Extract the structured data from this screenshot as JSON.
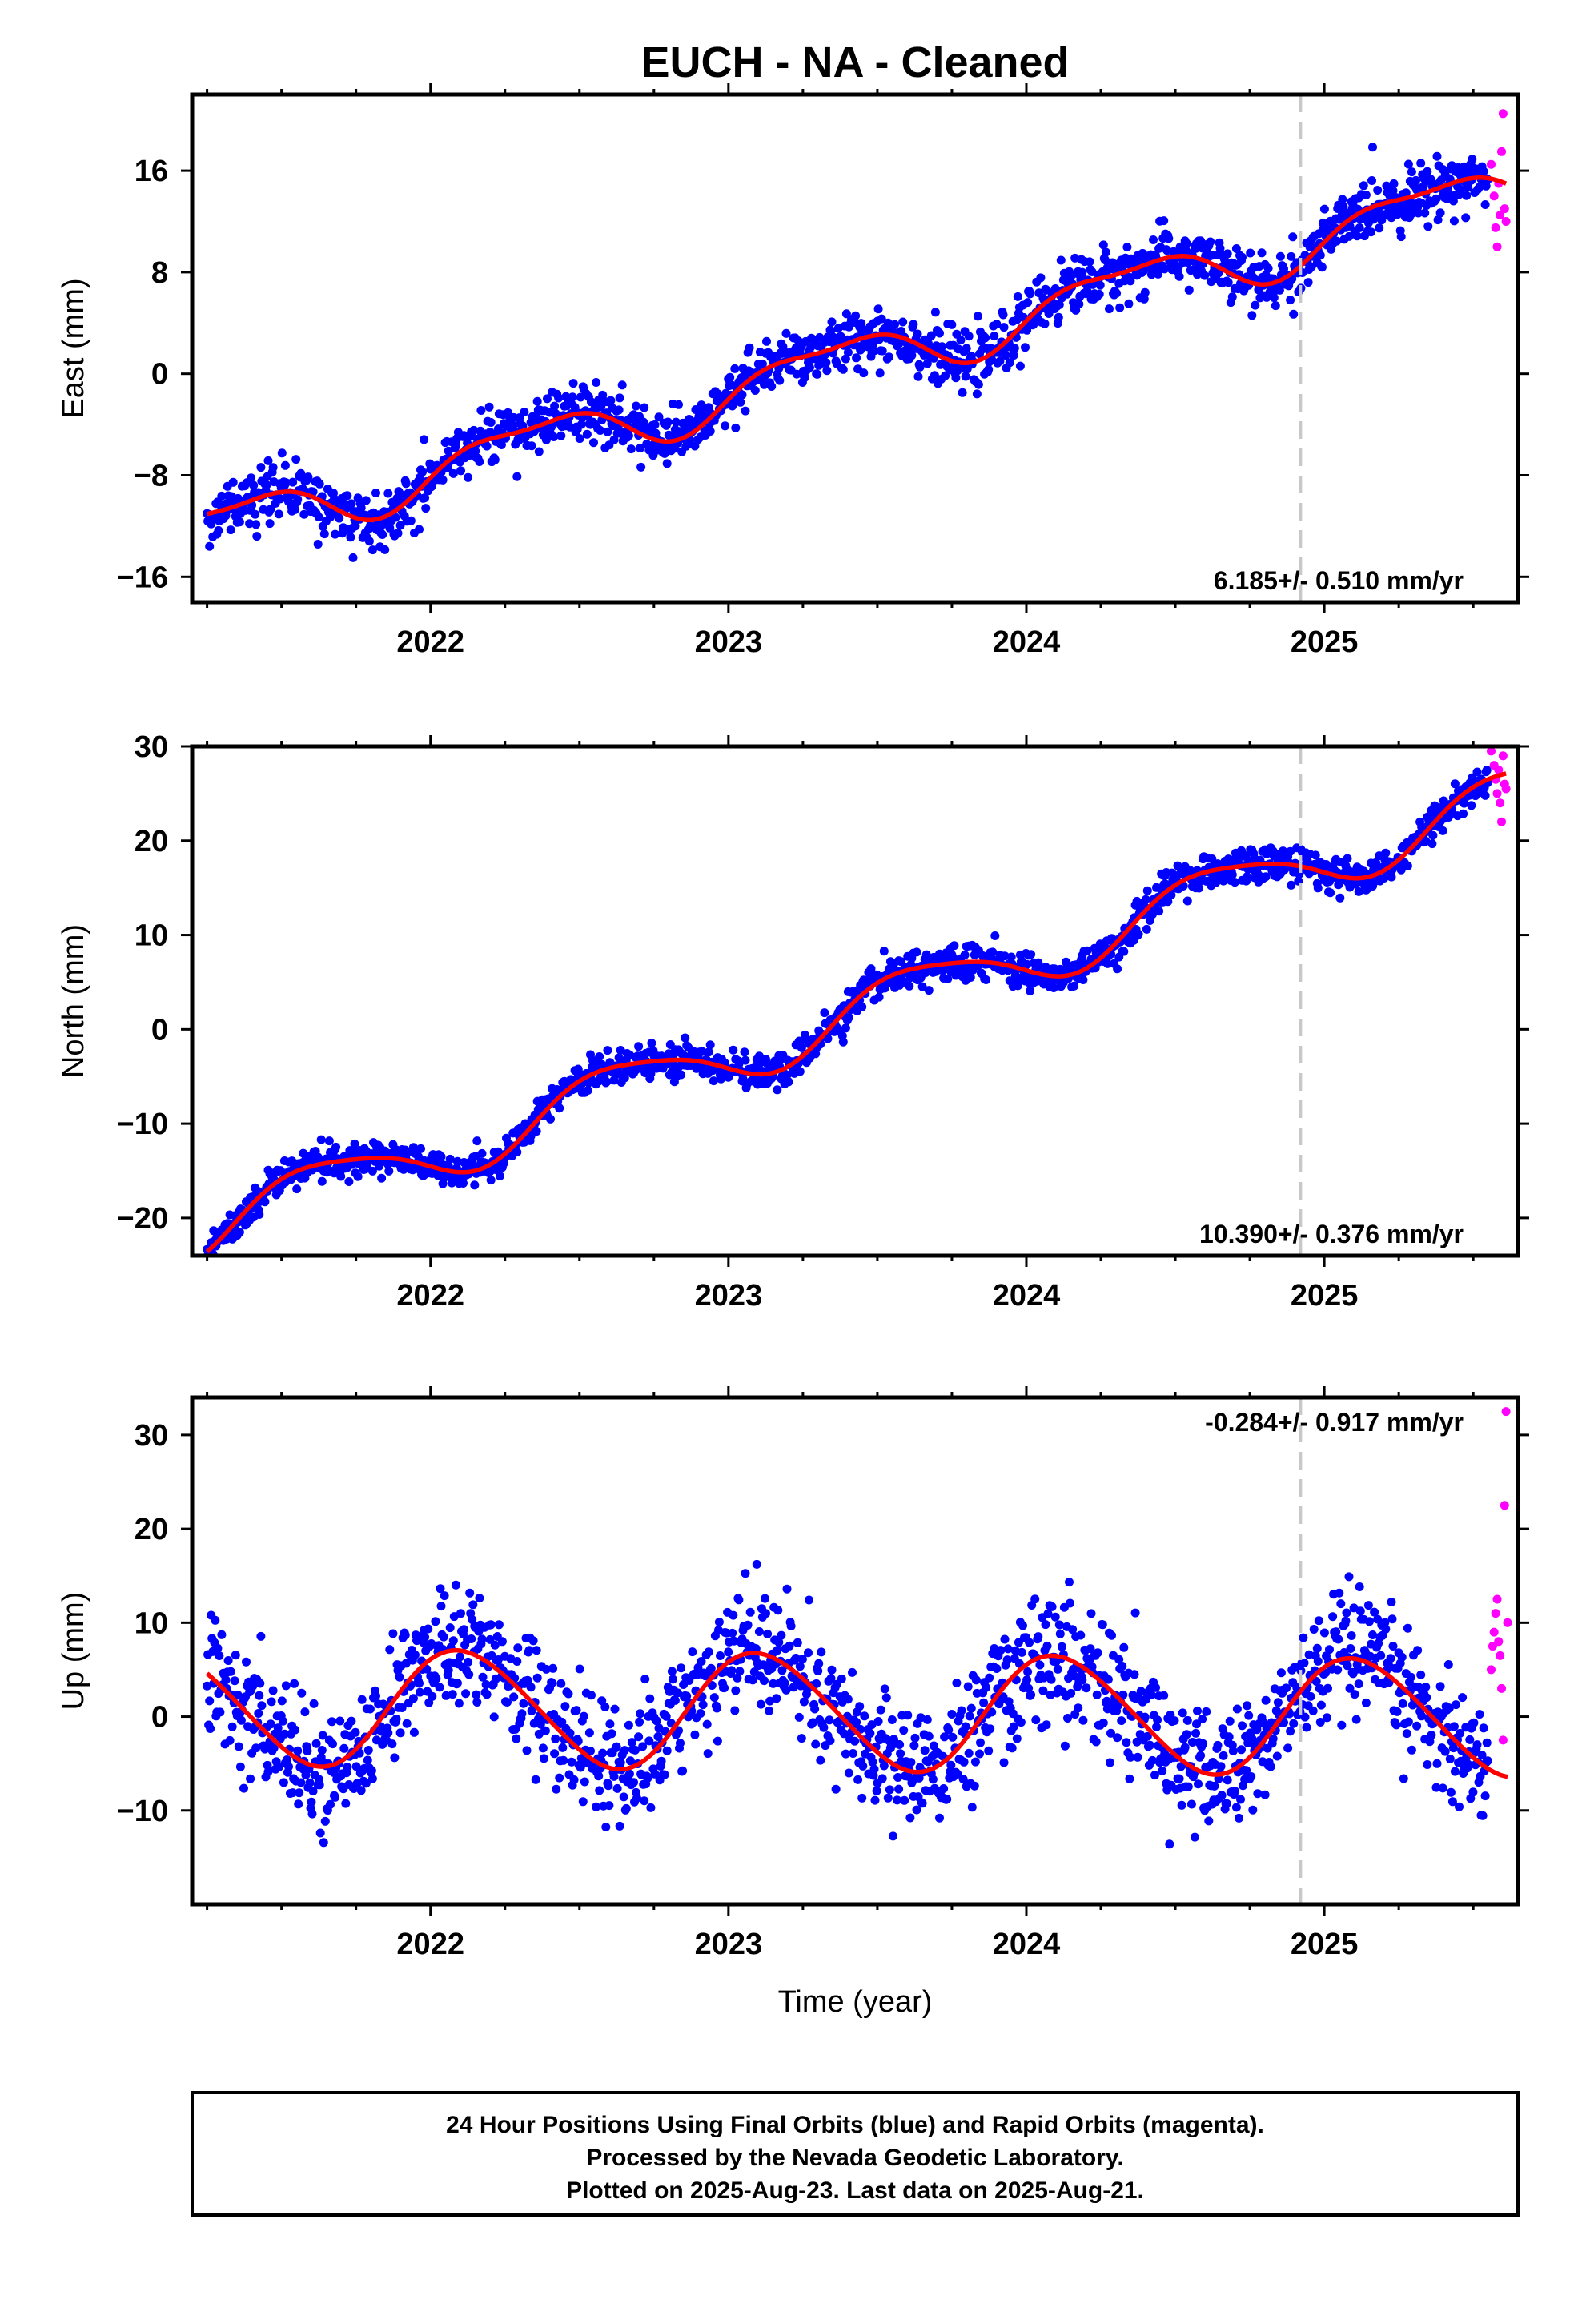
{
  "title": "EUCH  - NA - Cleaned",
  "xlabel": "Time (year)",
  "footer": [
    "24 Hour Positions Using Final Orbits (blue) and Rapid Orbits (magenta).",
    "Processed by the Nevada Geodetic Laboratory.",
    "Plotted on 2025-Aug-23. Last data on 2025-Aug-21."
  ],
  "colors": {
    "final_orbits": "#0000ff",
    "rapid_orbits": "#ff00ff",
    "model_fit": "#ff0000",
    "dashed_line": "#c8c8c8",
    "frame": "#000000"
  },
  "chart_data": [
    {
      "type": "scatter",
      "panel": "east",
      "ylabel": "East (mm)",
      "xlim": [
        2021.2,
        2025.65
      ],
      "ylim": [
        -18,
        22
      ],
      "xticks": [
        2022,
        2023,
        2024,
        2025
      ],
      "yticks": [
        -16,
        -8,
        0,
        8,
        16
      ],
      "ytick_labels": [
        "−16",
        "−8",
        "0",
        "8",
        "16"
      ],
      "dashed_vline_x": 2024.92,
      "rate_label": "6.185+/- 0.510 mm/yr",
      "rate_label_position": "bottom-right",
      "grid": false,
      "legend": "none",
      "model": {
        "name": "",
        "x0": 2023.4,
        "offset": 1.0,
        "rate": 6.185,
        "annual_sin": -0.8,
        "annual_cos": 1.8,
        "semiannual_sin": 0.6,
        "semiannual_cos": -0.4
      },
      "series": [
        {
          "name": "",
          "kind": "final",
          "x_start": 2021.25,
          "x_end": 2025.55,
          "noise": 1.1
        },
        {
          "name": "",
          "kind": "rapid",
          "x": [
            2025.56,
            2025.57,
            2025.575,
            2025.58,
            2025.585,
            2025.59,
            2025.595,
            2025.6,
            2025.605,
            2025.61
          ],
          "y": [
            16.5,
            14.0,
            11.5,
            10.0,
            15.0,
            12.5,
            17.5,
            20.5,
            13.0,
            12.0
          ]
        }
      ]
    },
    {
      "type": "scatter",
      "panel": "north",
      "ylabel": "North (mm)",
      "xlim": [
        2021.2,
        2025.65
      ],
      "ylim": [
        -24,
        30
      ],
      "xticks": [
        2022,
        2023,
        2024,
        2025
      ],
      "yticks": [
        -20,
        -10,
        0,
        10,
        20,
        30
      ],
      "ytick_labels": [
        "−20",
        "−10",
        "0",
        "10",
        "20",
        "30"
      ],
      "dashed_vline_x": 2024.92,
      "rate_label": "10.390+/- 0.376 mm/yr",
      "rate_label_position": "bottom-right",
      "grid": false,
      "legend": "none",
      "model": {
        "name": "",
        "x0": 2023.4,
        "offset": 1.5,
        "rate": 10.39,
        "annual_sin": 3.0,
        "annual_cos": 0.2,
        "semiannual_sin": 0.3,
        "semiannual_cos": 0.5
      },
      "series": [
        {
          "name": "",
          "kind": "final",
          "x_start": 2021.25,
          "x_end": 2025.55,
          "noise": 0.9
        },
        {
          "name": "",
          "kind": "rapid",
          "x": [
            2025.56,
            2025.57,
            2025.575,
            2025.58,
            2025.585,
            2025.59,
            2025.595,
            2025.6,
            2025.605,
            2025.61
          ],
          "y": [
            29.5,
            28.0,
            26.5,
            25.0,
            27.5,
            24.0,
            22.0,
            29.0,
            26.0,
            25.5
          ]
        }
      ]
    },
    {
      "type": "scatter",
      "panel": "up",
      "ylabel": "Up (mm)",
      "xlim": [
        2021.2,
        2025.65
      ],
      "ylim": [
        -20,
        34
      ],
      "xticks": [
        2022,
        2023,
        2024,
        2025
      ],
      "yticks": [
        -10,
        0,
        10,
        20,
        30
      ],
      "ytick_labels": [
        "−10",
        "0",
        "10",
        "20",
        "30"
      ],
      "dashed_vline_x": 2024.92,
      "rate_label": "-0.284+/- 0.917 mm/yr",
      "rate_label_position": "top-right",
      "grid": false,
      "legend": "none",
      "model": {
        "name": "",
        "x0": 2023.4,
        "offset": 0.5,
        "rate": -0.284,
        "annual_sin": -6.0,
        "annual_cos": -1.5,
        "semiannual_sin": 0.4,
        "semiannual_cos": 0.3
      },
      "series": [
        {
          "name": "",
          "kind": "final",
          "x_start": 2021.25,
          "x_end": 2025.55,
          "noise": 3.2
        },
        {
          "name": "",
          "kind": "rapid",
          "x": [
            2025.56,
            2025.565,
            2025.57,
            2025.575,
            2025.58,
            2025.585,
            2025.59,
            2025.595,
            2025.6,
            2025.605,
            2025.61,
            2025.615
          ],
          "y": [
            5.0,
            7.5,
            9.0,
            11.0,
            12.5,
            8.0,
            6.5,
            3.0,
            -2.5,
            22.5,
            32.5,
            10.0
          ]
        }
      ]
    }
  ]
}
